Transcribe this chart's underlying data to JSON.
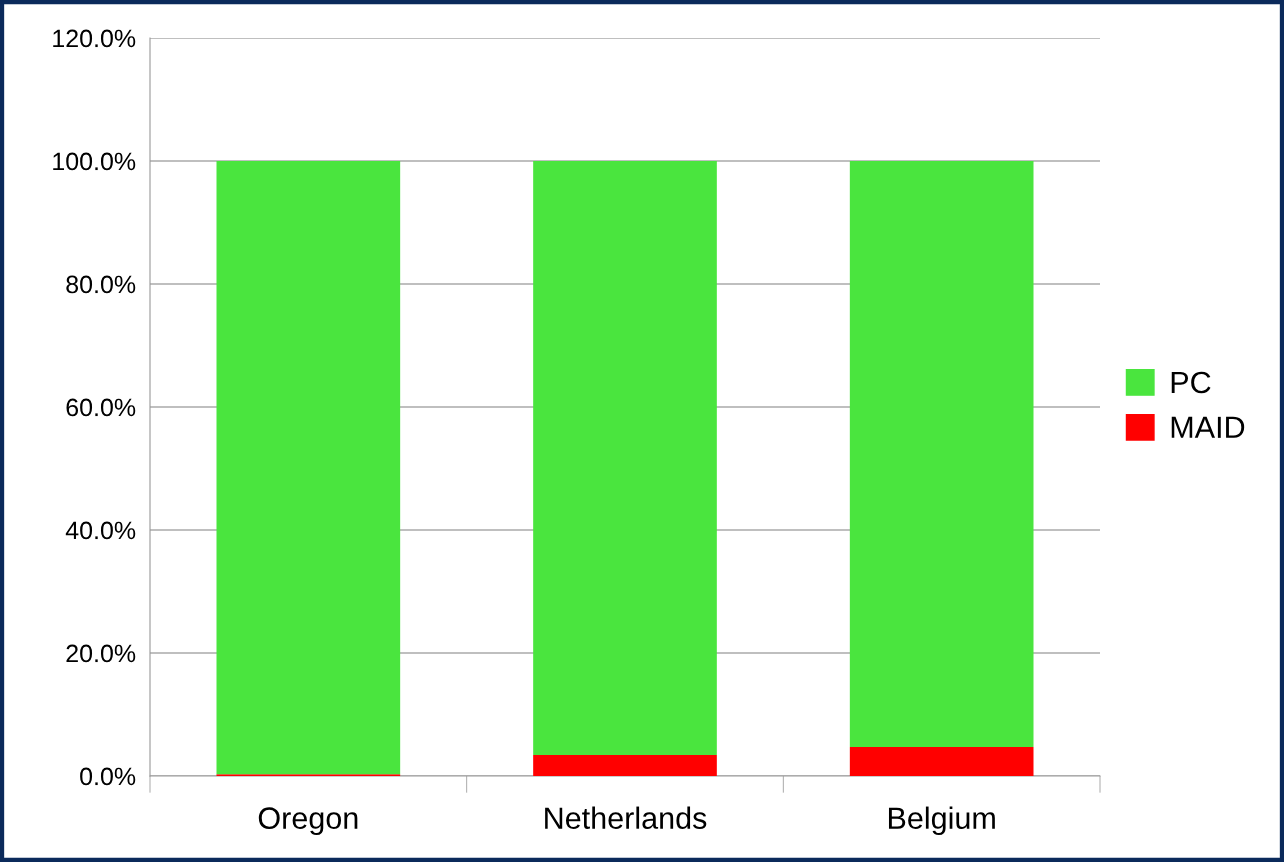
{
  "chart_data": {
    "type": "bar",
    "stacked": true,
    "categories": [
      "Oregon",
      "Netherlands",
      "Belgium"
    ],
    "series": [
      {
        "name": "MAID",
        "color": "#ff0000",
        "values": [
          0.3,
          3.4,
          4.7
        ]
      },
      {
        "name": "PC",
        "color": "#4ae53e",
        "values": [
          99.7,
          96.6,
          95.3
        ]
      }
    ],
    "ylim": [
      0,
      120
    ],
    "yticks": [
      {
        "value": 0,
        "label": "0.0%"
      },
      {
        "value": 20,
        "label": "20.0%"
      },
      {
        "value": 40,
        "label": "40.0%"
      },
      {
        "value": 60,
        "label": "60.0%"
      },
      {
        "value": 80,
        "label": "80.0%"
      },
      {
        "value": 100,
        "label": "100.0%"
      },
      {
        "value": 120,
        "label": "120.0%"
      }
    ],
    "grid": "y",
    "legend": "right"
  }
}
